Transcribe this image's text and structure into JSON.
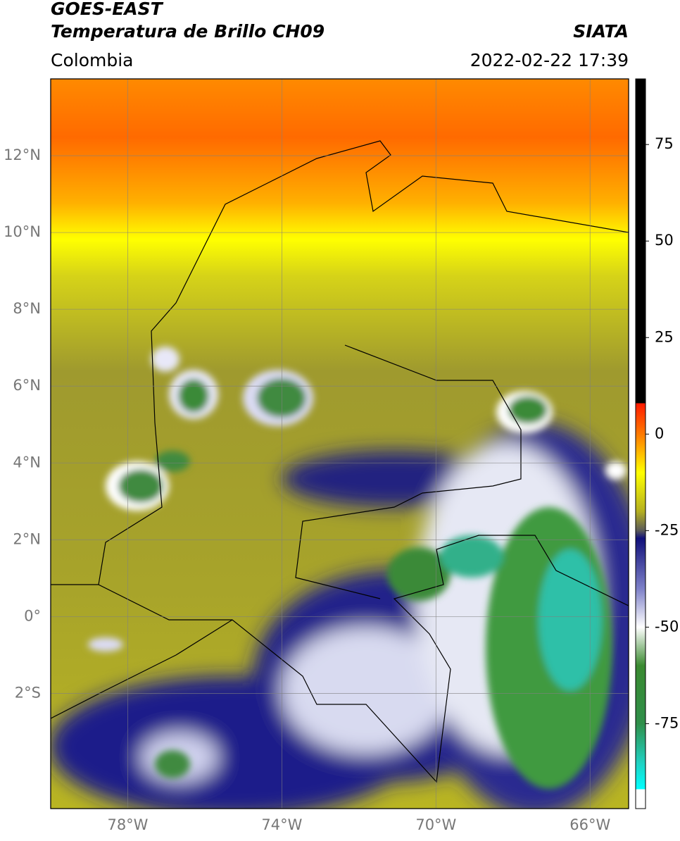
{
  "chart_data": {
    "type": "map",
    "title": "GOES-EAST",
    "subtitle": "Temperatura de Brillo CH09",
    "source": "SIATA",
    "region": "Colombia",
    "datetime": "2022-02-22 17:39",
    "xlim": [
      -80,
      -65
    ],
    "ylim": [
      -5,
      14
    ],
    "xticks": [
      {
        "value": -78,
        "label": "78°W"
      },
      {
        "value": -74,
        "label": "74°W"
      },
      {
        "value": -70,
        "label": "70°W"
      },
      {
        "value": -66,
        "label": "66°W"
      }
    ],
    "yticks": [
      {
        "value": 12,
        "label": "12°N"
      },
      {
        "value": 10,
        "label": "10°N"
      },
      {
        "value": 8,
        "label": "8°N"
      },
      {
        "value": 6,
        "label": "6°N"
      },
      {
        "value": 4,
        "label": "4°N"
      },
      {
        "value": 2,
        "label": "2°N"
      },
      {
        "value": 0,
        "label": "0°"
      },
      {
        "value": -2,
        "label": "2°S"
      }
    ],
    "grid": true,
    "colorbar": {
      "lim": [
        -97,
        92
      ],
      "ticks": [
        75,
        50,
        25,
        0,
        -25,
        -50,
        -75
      ],
      "colormap": [
        {
          "value": 92,
          "color": "#000000"
        },
        {
          "value": 8,
          "color": "#000000"
        },
        {
          "value": 8,
          "color": "#ff1a00"
        },
        {
          "value": 0,
          "color": "#ff7a00"
        },
        {
          "value": -10,
          "color": "#ffff00"
        },
        {
          "value": -20,
          "color": "#b5b020"
        },
        {
          "value": -25,
          "color": "#5a5a5a"
        },
        {
          "value": -27,
          "color": "#10107a"
        },
        {
          "value": -40,
          "color": "#7d80c8"
        },
        {
          "value": -50,
          "color": "#ffffff"
        },
        {
          "value": -60,
          "color": "#3a8a30"
        },
        {
          "value": -75,
          "color": "#2f8f4a"
        },
        {
          "value": -85,
          "color": "#20d0c0"
        },
        {
          "value": -92,
          "color": "#00ffff"
        },
        {
          "value": -92,
          "color": "#ffffff"
        },
        {
          "value": -97,
          "color": "#ffffff"
        }
      ]
    }
  }
}
